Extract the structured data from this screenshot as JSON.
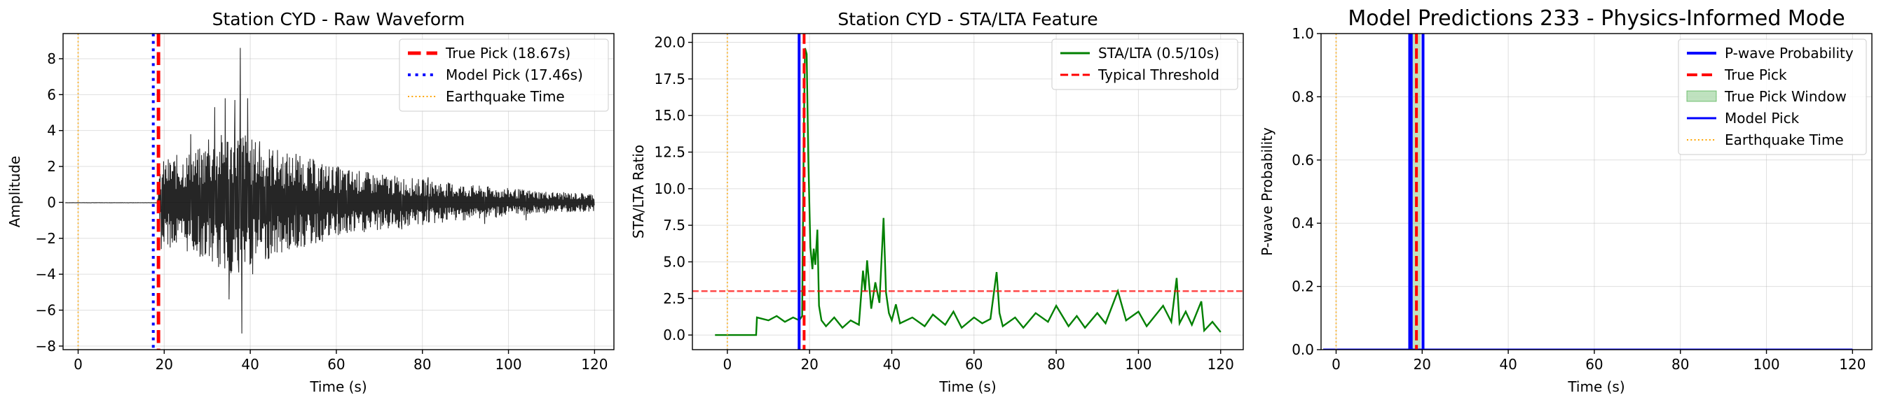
{
  "chart_data": [
    {
      "type": "line",
      "title": "Station CYD - Raw Waveform",
      "xlabel": "Time (s)",
      "ylabel": "Amplitude",
      "xlim": [
        -3.5,
        124.5
      ],
      "ylim": [
        -8.2,
        9.4
      ],
      "xticks": [
        0,
        20,
        40,
        60,
        80,
        100,
        120
      ],
      "yticks": [
        -8,
        -6,
        -4,
        -2,
        0,
        2,
        4,
        6,
        8
      ],
      "ytick_labels": [
        "−8",
        "−6",
        "−4",
        "−2",
        "0",
        "2",
        "4",
        "6",
        "8"
      ],
      "grid": true,
      "legend_position": "top-right",
      "series": [
        {
          "name": "waveform",
          "color": "#000000",
          "style": "solid",
          "envelope": [
            [
              -3,
              0.02
            ],
            [
              18,
              0.05
            ],
            [
              18.6,
              0.3
            ],
            [
              19,
              2.0
            ],
            [
              20,
              2.4
            ],
            [
              22,
              2.6
            ],
            [
              25,
              2.8
            ],
            [
              28,
              3.0
            ],
            [
              30,
              3.4
            ],
            [
              33,
              3.8
            ],
            [
              35,
              4.0
            ],
            [
              38,
              4.2
            ],
            [
              40,
              3.6
            ],
            [
              45,
              3.1
            ],
            [
              50,
              2.7
            ],
            [
              55,
              2.4
            ],
            [
              60,
              2.0
            ],
            [
              70,
              1.6
            ],
            [
              80,
              1.3
            ],
            [
              90,
              1.0
            ],
            [
              100,
              0.8
            ],
            [
              110,
              0.6
            ],
            [
              120,
              0.5
            ]
          ],
          "spikes": [
            [
              19.3,
              -2.6
            ],
            [
              26.2,
              3.8
            ],
            [
              28.6,
              -2.9
            ],
            [
              30.3,
              3.5
            ],
            [
              31.7,
              5.3
            ],
            [
              32.4,
              -3.1
            ],
            [
              34.2,
              5.8
            ],
            [
              35.1,
              -5.4
            ],
            [
              36.4,
              5.7
            ],
            [
              37.3,
              -3.9
            ],
            [
              37.7,
              8.6
            ],
            [
              38.0,
              -7.3
            ],
            [
              39.4,
              5.8
            ],
            [
              40.6,
              -4.0
            ],
            [
              42.2,
              3.4
            ],
            [
              43.6,
              -2.9
            ],
            [
              45.1,
              2.6
            ],
            [
              48.3,
              -2.2
            ],
            [
              50.6,
              2.7
            ],
            [
              56.0,
              -2.1
            ],
            [
              60.4,
              2.0
            ],
            [
              62.5,
              -1.7
            ],
            [
              75.2,
              -1.5
            ],
            [
              81.3,
              1.4
            ],
            [
              94.5,
              -1.2
            ],
            [
              104.1,
              -1.0
            ]
          ]
        }
      ],
      "vlines": [
        {
          "name": "True Pick (18.67s)",
          "x": 18.67,
          "color": "#ff0000",
          "style": "dashed",
          "width": 5
        },
        {
          "name": "Model Pick (17.46s)",
          "x": 17.46,
          "color": "#0000ff",
          "style": "dotted",
          "width": 4
        },
        {
          "name": "Earthquake Time",
          "x": 0,
          "color": "#ffa500",
          "style": "dotted",
          "width": 2
        }
      ],
      "legend": [
        {
          "label": "True Pick (18.67s)",
          "kind": "line",
          "color": "#ff0000",
          "style": "dashed",
          "width": 5
        },
        {
          "label": "Model Pick (17.46s)",
          "kind": "line",
          "color": "#0000ff",
          "style": "dotted",
          "width": 4
        },
        {
          "label": "Earthquake Time",
          "kind": "line",
          "color": "#ffa500",
          "style": "dotted",
          "width": 2
        }
      ]
    },
    {
      "type": "line",
      "title": "Station CYD - STA/LTA Feature",
      "xlabel": "Time (s)",
      "ylabel": "STA/LTA Ratio",
      "xlim": [
        -8.5,
        125.5
      ],
      "ylim": [
        -1.0,
        20.6
      ],
      "xticks": [
        0,
        20,
        40,
        60,
        80,
        100,
        120
      ],
      "yticks": [
        0.0,
        2.5,
        5.0,
        7.5,
        10.0,
        12.5,
        15.0,
        17.5,
        20.0
      ],
      "ytick_labels": [
        "0.0",
        "2.5",
        "5.0",
        "7.5",
        "10.0",
        "12.5",
        "15.0",
        "17.5",
        "20.0"
      ],
      "grid": true,
      "legend_position": "top-right",
      "series": [
        {
          "name": "STA/LTA (0.5/10s)",
          "color": "#008000",
          "style": "solid",
          "x": [
            -3,
            7,
            7.2,
            10,
            12,
            14,
            16,
            17.5,
            18.2,
            18.6,
            18.9,
            19.3,
            19.7,
            20.2,
            20.7,
            21.0,
            21.4,
            21.9,
            22.3,
            22.9,
            24,
            26,
            28,
            30,
            32,
            33.0,
            33.5,
            34,
            35,
            36,
            37,
            38.0,
            38.6,
            39.3,
            40,
            41,
            42,
            45,
            48,
            50,
            53,
            55,
            57,
            60,
            62,
            64,
            65.5,
            66.2,
            67,
            70,
            72,
            75,
            78,
            80,
            83,
            85,
            87,
            90,
            92,
            95,
            97,
            100,
            102,
            104,
            106,
            108,
            109.3,
            110,
            111.5,
            113,
            115.3,
            116,
            118,
            120
          ],
          "y": [
            0,
            0,
            1.2,
            1.0,
            1.3,
            0.9,
            1.2,
            1.0,
            1.3,
            14.0,
            19.6,
            19.2,
            12.0,
            6.0,
            4.5,
            5.9,
            4.8,
            7.2,
            2.0,
            1.0,
            0.6,
            1.2,
            0.5,
            1.0,
            0.7,
            4.4,
            3.0,
            5.1,
            1.8,
            3.6,
            2.2,
            8.0,
            2.9,
            1.5,
            1.0,
            2.1,
            0.8,
            1.2,
            0.6,
            1.4,
            0.7,
            1.6,
            0.5,
            1.2,
            0.8,
            1.1,
            4.3,
            1.5,
            0.6,
            1.2,
            0.5,
            1.5,
            0.9,
            2.0,
            0.6,
            1.3,
            0.5,
            1.5,
            0.8,
            3.0,
            1.0,
            1.6,
            0.6,
            1.3,
            2.0,
            0.9,
            3.9,
            0.8,
            1.6,
            0.7,
            2.3,
            0.3,
            0.9,
            0.2
          ]
        },
        {
          "name": "Typical Threshold",
          "color": "#ff0000",
          "style": "dashed",
          "hline": 3.0
        }
      ],
      "vlines": [
        {
          "name": "model pick",
          "x": 17.46,
          "color": "#0000ff",
          "style": "solid",
          "width": 4
        },
        {
          "name": "true pick",
          "x": 18.67,
          "color": "#ff0000",
          "style": "dashed",
          "width": 4
        },
        {
          "name": "earthquake time",
          "x": 0,
          "color": "#ffa500",
          "style": "dotted",
          "width": 2
        }
      ],
      "legend": [
        {
          "label": "STA/LTA (0.5/10s)",
          "kind": "line",
          "color": "#008000",
          "style": "solid",
          "width": 3
        },
        {
          "label": "Typical Threshold",
          "kind": "line",
          "color": "#ff0000",
          "style": "dashed",
          "width": 3
        }
      ]
    },
    {
      "type": "line",
      "title": "Model Predictions 233 - Physics-Informed Mode",
      "xlabel": "Time (s)",
      "ylabel": "P-wave Probability",
      "xlim": [
        -3.5,
        124.5
      ],
      "ylim": [
        0.0,
        1.0
      ],
      "xticks": [
        0,
        20,
        40,
        60,
        80,
        100,
        120
      ],
      "yticks": [
        0.0,
        0.2,
        0.4,
        0.6,
        0.8,
        1.0
      ],
      "ytick_labels": [
        "0.0",
        "0.2",
        "0.4",
        "0.6",
        "0.8",
        "1.0"
      ],
      "grid": true,
      "legend_position": "top-right",
      "series": [
        {
          "name": "P-wave Probability",
          "color": "#0000ff",
          "style": "solid",
          "x": [
            -3,
            120
          ],
          "y": [
            0,
            0
          ]
        }
      ],
      "span": {
        "name": "True Pick Window",
        "x0": 17.67,
        "x1": 19.67,
        "color": "#2ca02c",
        "opacity": 0.3
      },
      "vlines": [
        {
          "name": "window edge left",
          "x": 17.1,
          "color": "#0000ff",
          "style": "solid",
          "width": 4
        },
        {
          "name": "window edge right",
          "x": 20.2,
          "color": "#0000ff",
          "style": "solid",
          "width": 4
        },
        {
          "name": "Model Pick",
          "x": 17.46,
          "color": "#0000ff",
          "style": "solid",
          "width": 4
        },
        {
          "name": "True Pick",
          "x": 18.67,
          "color": "#ff0000",
          "style": "dashed",
          "width": 4
        },
        {
          "name": "Earthquake Time",
          "x": 0,
          "color": "#ffa500",
          "style": "dotted",
          "width": 2
        }
      ],
      "legend": [
        {
          "label": "P-wave Probability",
          "kind": "line",
          "color": "#0000ff",
          "style": "solid",
          "width": 4
        },
        {
          "label": "True Pick",
          "kind": "line",
          "color": "#ff0000",
          "style": "dashed",
          "width": 4
        },
        {
          "label": "True Pick Window",
          "kind": "patch",
          "color": "#2ca02c",
          "opacity": 0.3
        },
        {
          "label": "Model Pick",
          "kind": "line",
          "color": "#0000ff",
          "style": "solid",
          "width": 3
        },
        {
          "label": "Earthquake Time",
          "kind": "line",
          "color": "#ffa500",
          "style": "dotted",
          "width": 2
        }
      ]
    }
  ]
}
